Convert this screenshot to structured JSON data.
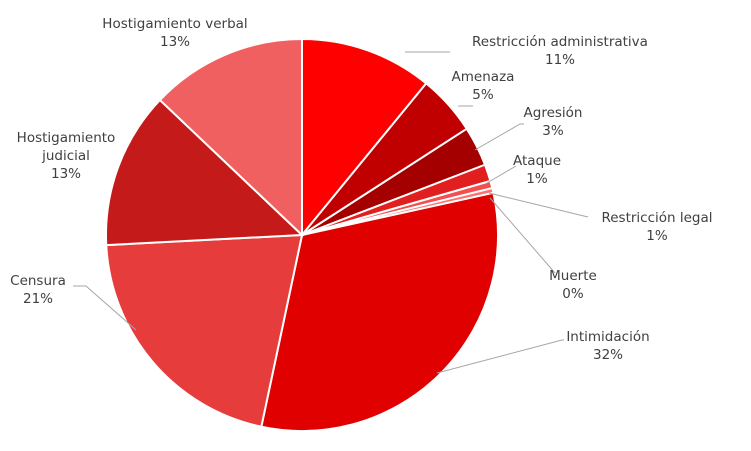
{
  "chart_data": {
    "type": "pie",
    "title": "",
    "start_angle_deg": 0,
    "slices": [
      {
        "name": "Restricción administrativa",
        "pct_label": "11%",
        "value": 11.0,
        "color": "#ff0000"
      },
      {
        "name": "Amenaza",
        "pct_label": "5%",
        "value": 5.0,
        "color": "#c00000"
      },
      {
        "name": "Agresión",
        "pct_label": "3%",
        "value": 3.3,
        "color": "#a50000"
      },
      {
        "name": "Ataque",
        "pct_label": "1%",
        "value": 1.4,
        "color": "#e21f1f"
      },
      {
        "name": "Restricción legal",
        "pct_label": "1%",
        "value": 0.6,
        "color": "#f05050"
      },
      {
        "name": "Muerte",
        "pct_label": "0%",
        "value": 0.4,
        "color": "#ff7070"
      },
      {
        "name": "Intimidación",
        "pct_label": "32%",
        "value": 32.0,
        "color": "#e00000"
      },
      {
        "name": "Censura",
        "pct_label": "21%",
        "value": 21.0,
        "color": "#e63c3c"
      },
      {
        "name": "Hostigamiento judicial",
        "pct_label": "13%",
        "value": 13.0,
        "color": "#c41a1a"
      },
      {
        "name": "Hostigamiento verbal",
        "pct_label": "13%",
        "value": 13.0,
        "color": "#f06060"
      }
    ]
  }
}
